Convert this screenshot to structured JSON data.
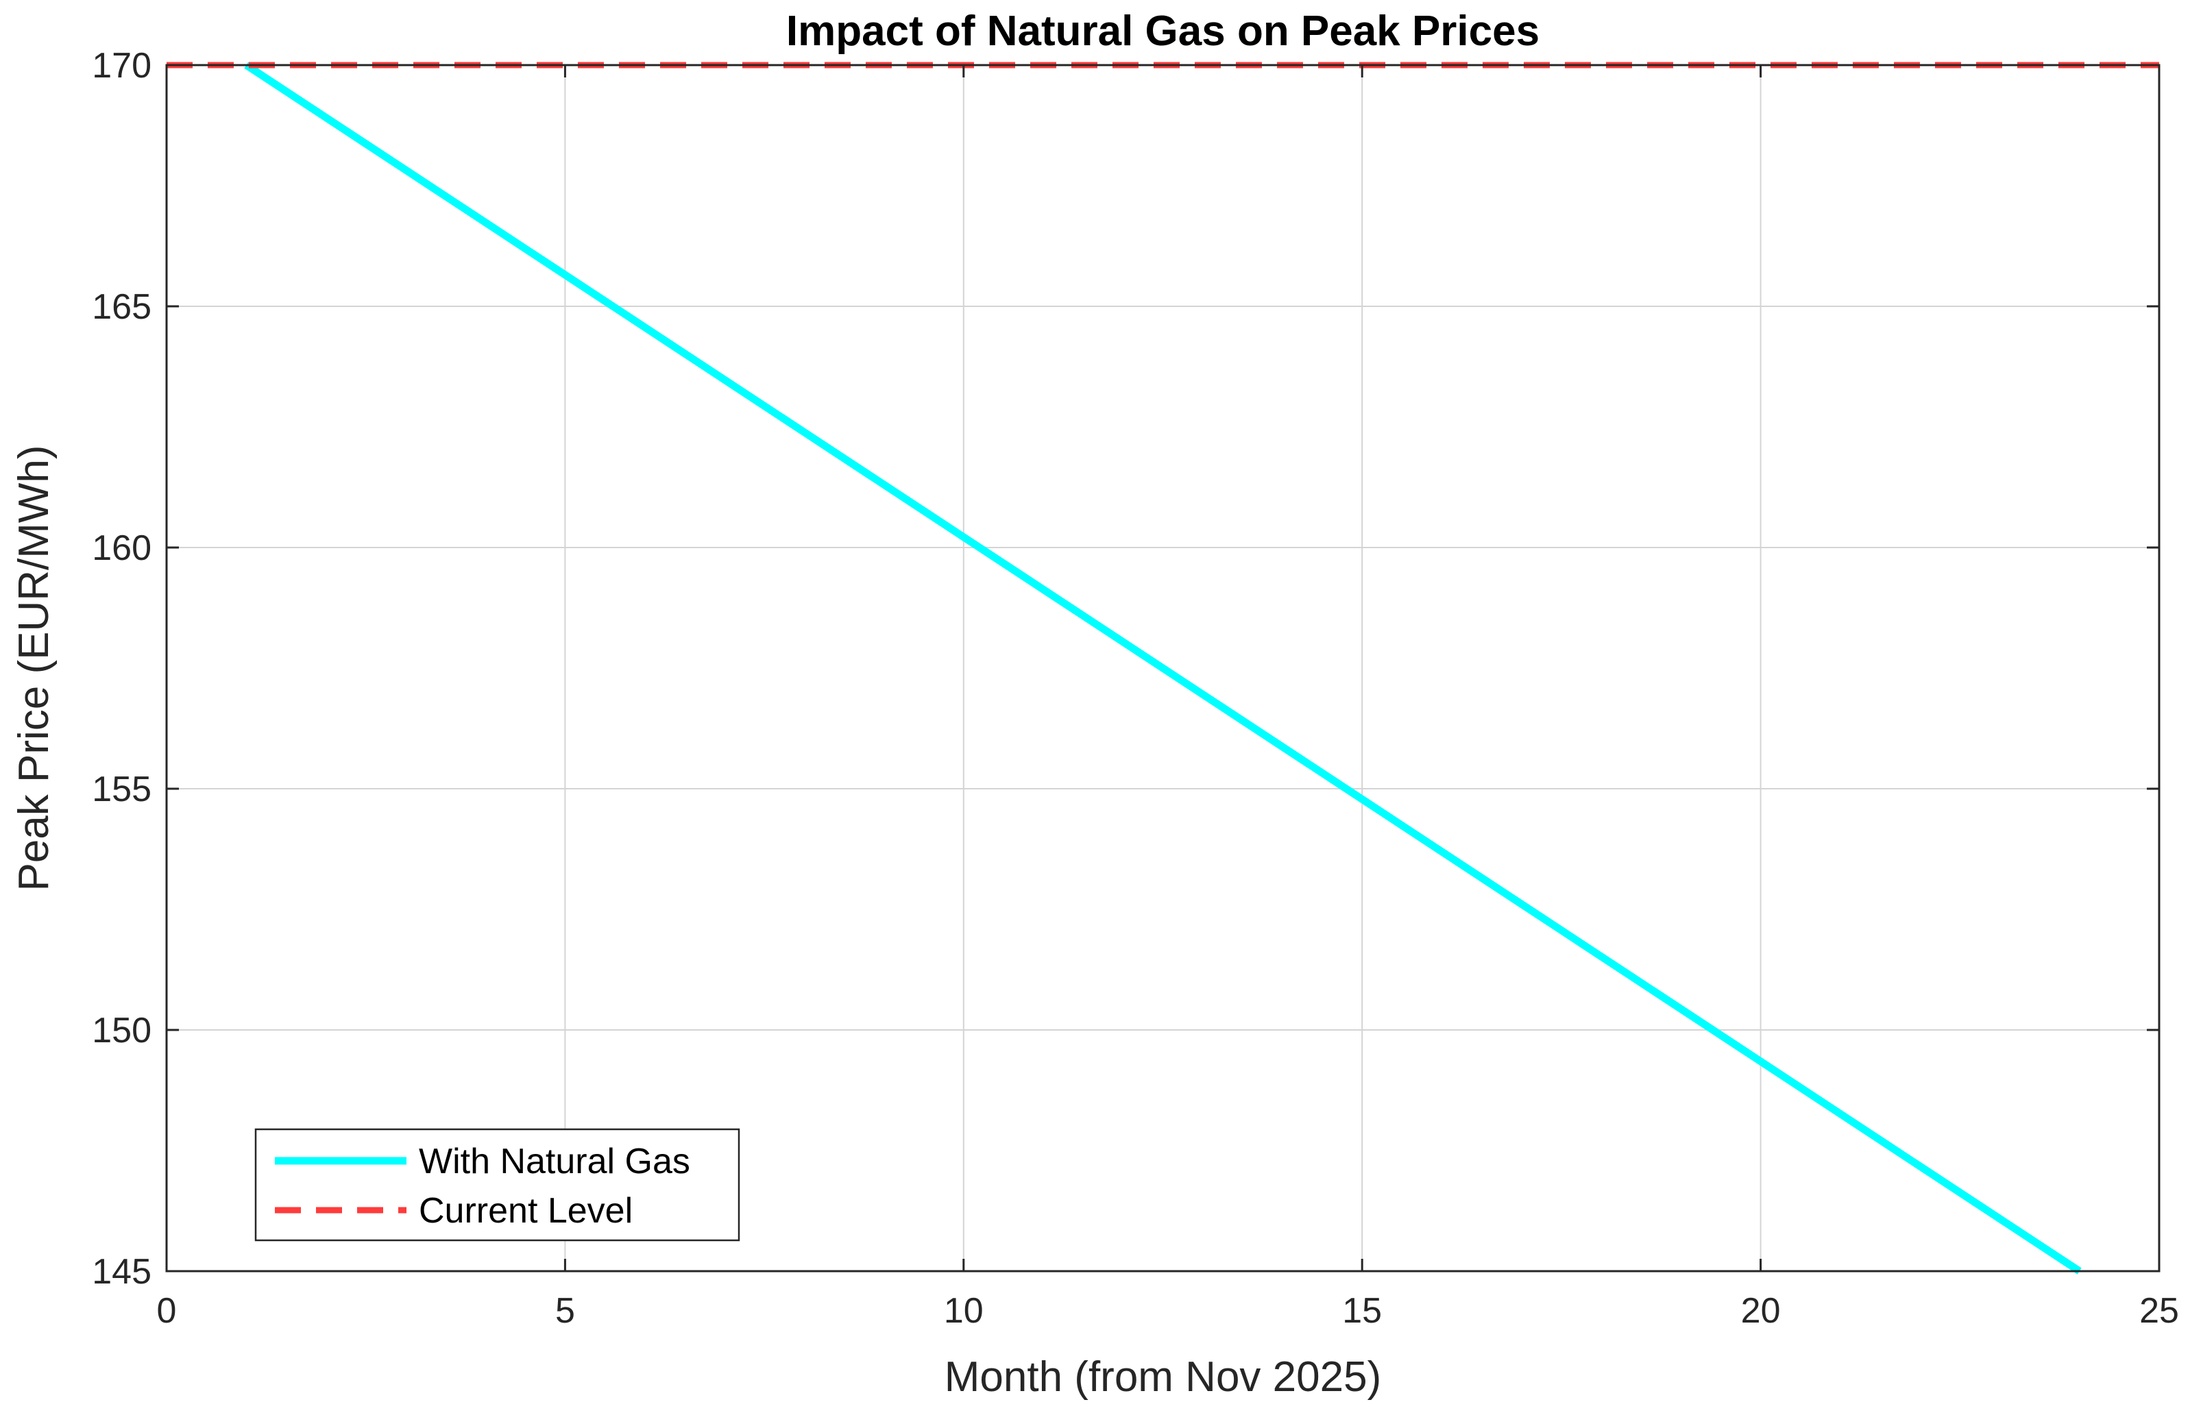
{
  "chart_data": {
    "type": "line",
    "title": "Impact of Natural Gas on Peak Prices",
    "xlabel": "Month (from Nov 2025)",
    "ylabel": "Peak Price (EUR/MWh)",
    "xlim": [
      0,
      25
    ],
    "ylim": [
      145,
      170
    ],
    "xticks": [
      0,
      5,
      10,
      15,
      20,
      25
    ],
    "yticks": [
      145,
      150,
      155,
      160,
      165,
      170
    ],
    "xtick_labels": [
      "0",
      "5",
      "10",
      "15",
      "20",
      "25"
    ],
    "ytick_labels": [
      "145",
      "150",
      "155",
      "160",
      "165",
      "170"
    ],
    "grid": true,
    "legend_position": "bottom-left",
    "series": [
      {
        "name": "With Natural Gas",
        "color": "#00ffff",
        "style": "solid",
        "x": [
          1,
          24
        ],
        "y": [
          170,
          145
        ]
      },
      {
        "name": "Current Level",
        "color": "#ff3b3b",
        "style": "dashed",
        "x": [
          0,
          25
        ],
        "y": [
          170,
          170
        ]
      }
    ]
  }
}
